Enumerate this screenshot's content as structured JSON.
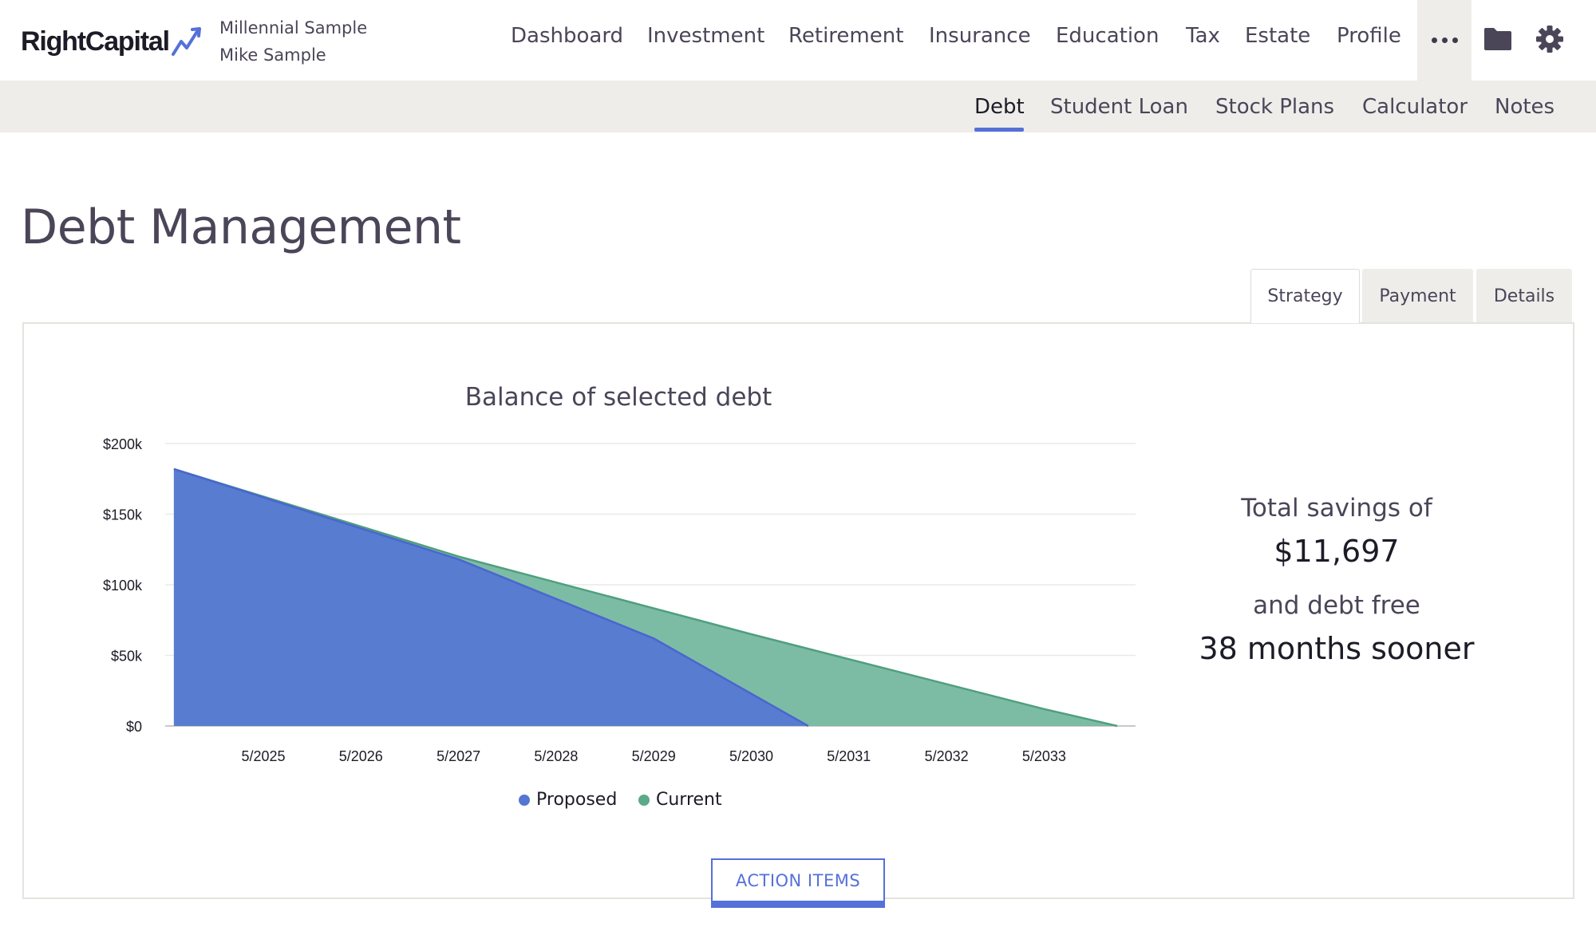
{
  "brand": {
    "name": "RightCapital",
    "accent": "#5670d9"
  },
  "client": {
    "household": "Millennial Sample",
    "person": "Mike Sample"
  },
  "main_nav": {
    "items": [
      {
        "label": "Dashboard"
      },
      {
        "label": "Investment"
      },
      {
        "label": "Retirement"
      },
      {
        "label": "Insurance"
      },
      {
        "label": "Education"
      },
      {
        "label": "Tax"
      },
      {
        "label": "Estate"
      },
      {
        "label": "Profile"
      }
    ],
    "icons": {
      "more": "more-dots-icon",
      "files": "folder-icon",
      "settings": "gear-icon"
    }
  },
  "sub_nav": {
    "items": [
      {
        "label": "Debt",
        "active": true
      },
      {
        "label": "Student Loan"
      },
      {
        "label": "Stock Plans"
      },
      {
        "label": "Calculator"
      },
      {
        "label": "Notes"
      }
    ]
  },
  "page": {
    "title": "Debt Management"
  },
  "tabs": [
    {
      "label": "Strategy",
      "active": true
    },
    {
      "label": "Payment"
    },
    {
      "label": "Details"
    }
  ],
  "chart_data": {
    "type": "area",
    "title": "Balance of selected debt",
    "xlabel": "",
    "ylabel": "",
    "x_ticks": [
      "5/2025",
      "5/2026",
      "5/2027",
      "5/2028",
      "5/2029",
      "5/2030",
      "5/2031",
      "5/2032",
      "5/2033"
    ],
    "y_ticks": [
      "$0",
      "$50k",
      "$100k",
      "$150k",
      "$200k"
    ],
    "ylim": [
      0,
      200000
    ],
    "grid": true,
    "legend_position": "bottom",
    "series": [
      {
        "name": "Current",
        "color": "#72b69c",
        "points": [
          {
            "x": "2024-06",
            "y": 182000
          },
          {
            "x": "2027-05",
            "y": 120000
          },
          {
            "x": "2030-05",
            "y": 65000
          },
          {
            "x": "2033-05",
            "y": 12000
          },
          {
            "x": "2034-02",
            "y": 0
          }
        ]
      },
      {
        "name": "Proposed",
        "color": "#5576d3",
        "points": [
          {
            "x": "2024-06",
            "y": 182000
          },
          {
            "x": "2027-05",
            "y": 118000
          },
          {
            "x": "2029-05",
            "y": 62000
          },
          {
            "x": "2030-12",
            "y": 0
          }
        ]
      }
    ]
  },
  "summary": {
    "savings_label": "Total savings of",
    "savings_value": "$11,697",
    "debt_free_label": "and debt free",
    "debt_free_value": "38 months sooner"
  },
  "action_button": {
    "label": "ACTION ITEMS"
  }
}
